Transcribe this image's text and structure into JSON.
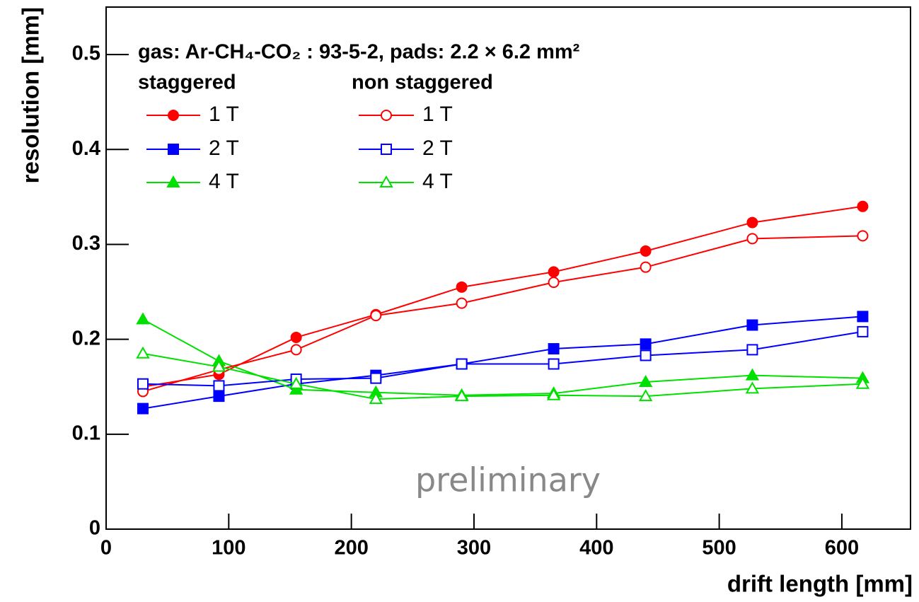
{
  "chart_data": {
    "type": "line",
    "legend_title": "gas:  Ar-CH₄-CO₂ : 93-5-2, pads: 2.2 × 6.2 mm²",
    "x_label": "drift length [mm]",
    "y_label": "resolution [mm]",
    "annotation": "preliminary",
    "xlim": [
      0,
      656
    ],
    "ylim": [
      0,
      0.55
    ],
    "xticks": [
      0,
      100,
      200,
      300,
      400,
      500,
      600
    ],
    "yticks": [
      0,
      0.1,
      0.2,
      0.3,
      0.4,
      0.5
    ],
    "x": [
      30,
      92,
      155,
      220,
      290,
      365,
      440,
      527,
      617
    ],
    "series_groups": [
      {
        "name": "staggered",
        "series": [
          {
            "name": "1 T",
            "color": "#ff0000",
            "marker": "circle",
            "filled": true,
            "values": [
              0.15,
              0.163,
              0.202,
              0.226,
              0.255,
              0.271,
              0.293,
              0.323,
              0.34
            ]
          },
          {
            "name": "2 T",
            "color": "#0000ff",
            "marker": "square",
            "filled": true,
            "values": [
              0.127,
              0.14,
              0.153,
              0.162,
              0.174,
              0.19,
              0.195,
              0.215,
              0.224
            ]
          },
          {
            "name": "4 T",
            "color": "#00e000",
            "marker": "triangle",
            "filled": true,
            "values": [
              0.221,
              0.177,
              0.147,
              0.144,
              0.141,
              0.143,
              0.155,
              0.162,
              0.159
            ]
          }
        ]
      },
      {
        "name": "non staggered",
        "series": [
          {
            "name": "1 T",
            "color": "#ff0000",
            "marker": "circle",
            "filled": false,
            "values": [
              0.145,
              0.168,
              0.189,
              0.225,
              0.238,
              0.26,
              0.276,
              0.306,
              0.309
            ]
          },
          {
            "name": "2 T",
            "color": "#0000ff",
            "marker": "square",
            "filled": false,
            "values": [
              0.153,
              0.151,
              0.158,
              0.159,
              0.174,
              0.174,
              0.183,
              0.189,
              0.208
            ]
          },
          {
            "name": "4 T",
            "color": "#00e000",
            "marker": "triangle",
            "filled": false,
            "values": [
              0.185,
              0.171,
              0.153,
              0.137,
              0.14,
              0.141,
              0.14,
              0.148,
              0.153
            ]
          }
        ]
      }
    ]
  }
}
